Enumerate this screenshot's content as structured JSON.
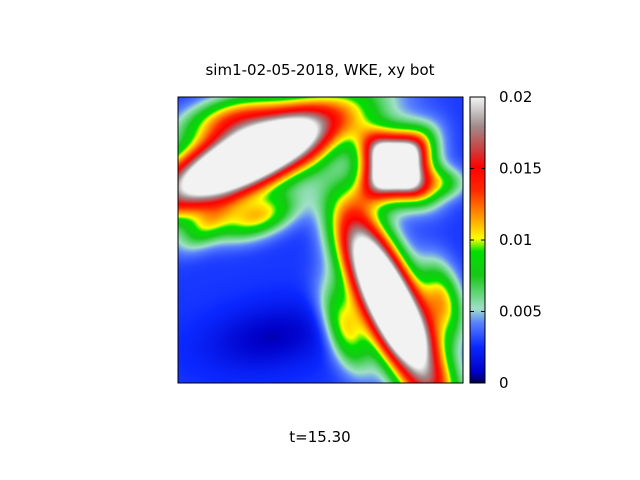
{
  "chart_data": {
    "type": "heatmap",
    "title": "sim1-02-05-2018, WKE, xy bot",
    "caption": "t=15.30",
    "xlabel": "",
    "ylabel": "",
    "colorbar": {
      "range": [
        0,
        0.02
      ],
      "ticks": [
        {
          "value": 0,
          "label": "0"
        },
        {
          "value": 0.005,
          "label": "0.005"
        },
        {
          "value": 0.01,
          "label": "0.01"
        },
        {
          "value": 0.015,
          "label": "0.015"
        },
        {
          "value": 0.02,
          "label": "0.02"
        }
      ],
      "colormap": [
        {
          "value": 0.0,
          "color": "#000050"
        },
        {
          "value": 0.0007,
          "color": "#0000c8"
        },
        {
          "value": 0.0025,
          "color": "#0a28ff"
        },
        {
          "value": 0.0042,
          "color": "#5a82ff"
        },
        {
          "value": 0.0052,
          "color": "#a0e0c8"
        },
        {
          "value": 0.0075,
          "color": "#18c818"
        },
        {
          "value": 0.0092,
          "color": "#00e000"
        },
        {
          "value": 0.0101,
          "color": "#ffff00"
        },
        {
          "value": 0.0115,
          "color": "#ffa000"
        },
        {
          "value": 0.0135,
          "color": "#ff2800"
        },
        {
          "value": 0.0151,
          "color": "#ff0000"
        },
        {
          "value": 0.0165,
          "color": "#c84646"
        },
        {
          "value": 0.018,
          "color": "#a08c8c"
        },
        {
          "value": 0.0195,
          "color": "#dcdcdc"
        },
        {
          "value": 0.02,
          "color": "#f2f2f2"
        }
      ]
    },
    "background_value": 0.0028,
    "features": [
      {
        "kind": "ellipse",
        "cx": 0.25,
        "cy": 0.79,
        "a": 0.51,
        "b": 0.155,
        "angle_deg": 25,
        "peak": 0.03,
        "falloff": 2.2
      },
      {
        "kind": "ellipse",
        "cx": 0.75,
        "cy": 0.27,
        "a": 0.52,
        "b": 0.14,
        "angle_deg": -64,
        "peak": 0.03,
        "falloff": 2.2
      },
      {
        "kind": "rounded-square",
        "cx": 0.765,
        "cy": 0.76,
        "r": 0.16,
        "peak": 0.03,
        "falloff": 2.4
      },
      {
        "kind": "ellipse",
        "cx": 0.18,
        "cy": 0.93,
        "a": 0.2,
        "b": 0.085,
        "angle_deg": 15,
        "peak": 0.0075,
        "falloff": 1.3
      },
      {
        "kind": "ellipse",
        "cx": 0.28,
        "cy": 0.58,
        "a": 0.16,
        "b": 0.075,
        "angle_deg": 20,
        "peak": 0.0075,
        "falloff": 1.3
      },
      {
        "kind": "ellipse",
        "cx": 0.585,
        "cy": 0.19,
        "a": 0.17,
        "b": 0.075,
        "angle_deg": -70,
        "peak": 0.0075,
        "falloff": 1.3
      },
      {
        "kind": "ellipse",
        "cx": 0.93,
        "cy": 0.29,
        "a": 0.15,
        "b": 0.075,
        "angle_deg": -75,
        "peak": 0.0075,
        "falloff": 1.3
      },
      {
        "kind": "ellipse",
        "cx": 0.93,
        "cy": 0.7,
        "a": 0.09,
        "b": 0.06,
        "angle_deg": 0,
        "peak": 0.0045,
        "falloff": 1.2
      },
      {
        "kind": "ellipse",
        "cx": 0.1,
        "cy": 0.55,
        "a": 0.12,
        "b": 0.06,
        "angle_deg": 40,
        "peak": 0.0045,
        "falloff": 1.2
      },
      {
        "kind": "ellipse",
        "cx": 0.33,
        "cy": 0.16,
        "a": 0.25,
        "b": 0.12,
        "angle_deg": 10,
        "peak": -0.0022,
        "falloff": 1.2
      },
      {
        "kind": "ellipse",
        "cx": 0.53,
        "cy": 0.72,
        "a": 0.1,
        "b": 0.22,
        "angle_deg": 0,
        "peak": -0.0016,
        "falloff": 1.2
      },
      {
        "kind": "ellipse",
        "cx": 0.85,
        "cy": 0.08,
        "a": 0.1,
        "b": 0.08,
        "angle_deg": 0,
        "peak": -0.0018,
        "falloff": 1.2
      }
    ]
  }
}
